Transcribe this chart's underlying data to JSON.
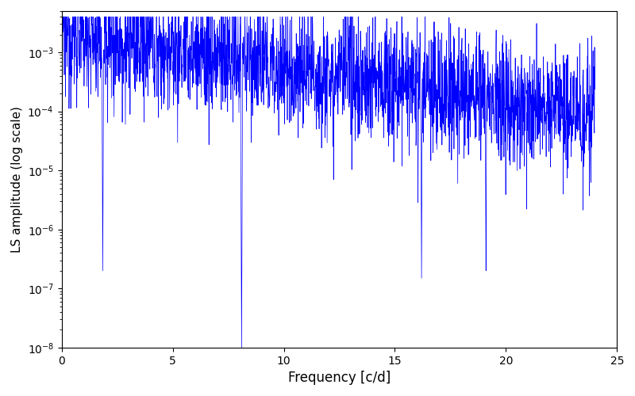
{
  "title": "",
  "xlabel": "Frequency [c/d]",
  "ylabel": "LS amplitude (log scale)",
  "xlim": [
    0,
    25
  ],
  "ylim": [
    1e-08,
    0.005
  ],
  "line_color": "#0000FF",
  "line_width": 0.5,
  "background_color": "#ffffff",
  "figsize": [
    8.0,
    5.0
  ],
  "dpi": 100,
  "freq_max": 24.0,
  "n_points": 2400,
  "seed": 12345
}
